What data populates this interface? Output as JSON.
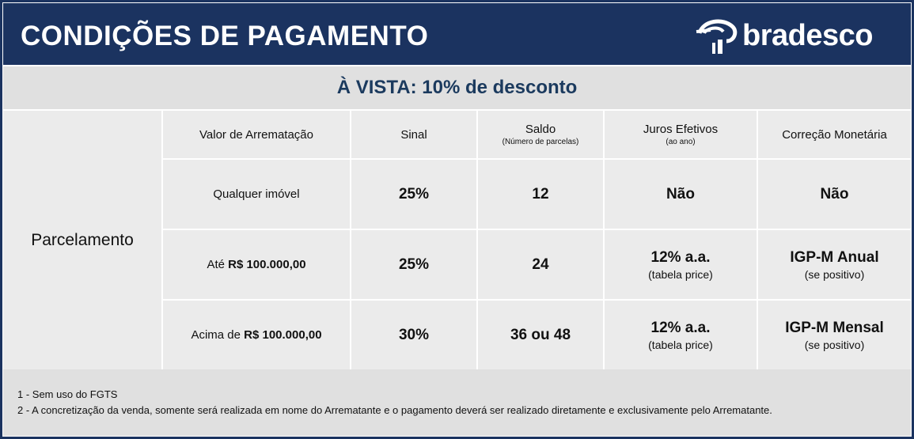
{
  "header": {
    "title": "CONDIÇÕES DE PAGAMENTO",
    "logo_text": "bradesco"
  },
  "band": {
    "text": "À VISTA: 10% de desconto"
  },
  "table": {
    "row_label": "Parcelamento",
    "columns": [
      {
        "label": "Valor de Arrematação",
        "sub": ""
      },
      {
        "label": "Sinal",
        "sub": ""
      },
      {
        "label": "Saldo",
        "sub": "(Número de parcelas)"
      },
      {
        "label": "Juros Efetivos",
        "sub": "(ao ano)"
      },
      {
        "label": "Correção Monetária",
        "sub": ""
      }
    ],
    "rows": [
      {
        "valor_prefix": "Qualquer imóvel",
        "valor_amount": "",
        "sinal": "25%",
        "saldo": "12",
        "juros": "Não",
        "juros_sub": "",
        "correcao": "Não",
        "correcao_sub": ""
      },
      {
        "valor_prefix": "Até",
        "valor_amount": "R$ 100.000,00",
        "sinal": "25%",
        "saldo": "24",
        "juros": "12% a.a.",
        "juros_sub": "(tabela price)",
        "correcao": "IGP-M Anual",
        "correcao_sub": "(se positivo)"
      },
      {
        "valor_prefix": "Acima de",
        "valor_amount": "R$ 100.000,00",
        "sinal": "30%",
        "saldo": "36 ou 48",
        "juros": "12% a.a.",
        "juros_sub": "(tabela price)",
        "correcao": "IGP-M Mensal",
        "correcao_sub": "(se positivo)"
      }
    ]
  },
  "footer": {
    "notes": [
      "1 - Sem uso do FGTS",
      "2 - A concretização da venda, somente será realizada em nome do Arrematante e o pagamento deverá ser realizado diretamente e exclusivamente pelo Arrematante."
    ]
  }
}
